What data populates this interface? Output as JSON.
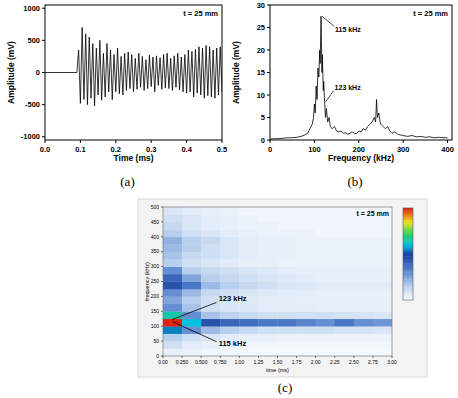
{
  "chart_data": [
    {
      "type": "line",
      "title": "(a)",
      "subtitle": "t = 25 mm",
      "x_label": "Time (ms)",
      "y_label": "Amplitude (mV)",
      "color": "#000000",
      "xlim": [
        0,
        0.5
      ],
      "ylim": [
        -1050,
        1050
      ],
      "xticks": [
        {
          "value": 0,
          "label": "0.0"
        },
        0.1,
        0.2,
        0.3,
        0.4,
        0.5
      ],
      "yticks": [
        -1000,
        -500,
        0,
        500,
        1000
      ],
      "x": [
        0,
        0.09,
        0.095,
        0.1,
        0.105,
        0.11,
        0.115,
        0.12,
        0.125,
        0.13,
        0.135,
        0.14,
        0.145,
        0.15,
        0.155,
        0.16,
        0.165,
        0.17,
        0.175,
        0.18,
        0.185,
        0.19,
        0.195,
        0.2,
        0.205,
        0.21,
        0.215,
        0.22,
        0.225,
        0.23,
        0.235,
        0.24,
        0.245,
        0.25,
        0.255,
        0.26,
        0.265,
        0.27,
        0.275,
        0.28,
        0.285,
        0.29,
        0.295,
        0.3,
        0.305,
        0.31,
        0.315,
        0.32,
        0.325,
        0.33,
        0.335,
        0.34,
        0.345,
        0.35,
        0.355,
        0.36,
        0.365,
        0.37,
        0.375,
        0.38,
        0.385,
        0.39,
        0.395,
        0.4,
        0.405,
        0.41,
        0.415,
        0.42,
        0.425,
        0.43,
        0.435,
        0.44,
        0.445,
        0.45,
        0.455,
        0.46,
        0.465,
        0.47,
        0.475,
        0.48,
        0.485,
        0.49,
        0.495,
        0.5
      ],
      "values": [
        0,
        0,
        350,
        -480,
        700,
        -420,
        600,
        -500,
        550,
        -400,
        450,
        -520,
        380,
        -350,
        500,
        -430,
        300,
        -380,
        450,
        -300,
        350,
        -420,
        280,
        -300,
        380,
        -330,
        250,
        -350,
        300,
        -280,
        320,
        -250,
        280,
        -300,
        220,
        -260,
        300,
        -230,
        250,
        -280,
        200,
        -250,
        270,
        -220,
        240,
        -300,
        260,
        -200,
        230,
        -260,
        280,
        -240,
        300,
        -250,
        220,
        -280,
        260,
        -230,
        300,
        -270,
        240,
        -300,
        280,
        -320,
        350,
        -300,
        330,
        -380,
        360,
        -320,
        400,
        -350,
        380,
        -400,
        420,
        -360,
        400,
        -380,
        350,
        -400,
        380,
        -350,
        400,
        -300
      ]
    },
    {
      "type": "line",
      "title": "(b)",
      "subtitle": "t = 25 mm",
      "x_label": "Frequency (kHz)",
      "y_label": "Amplitude (mV)",
      "color": "#000000",
      "xlim": [
        0,
        410
      ],
      "ylim": [
        0,
        30
      ],
      "xticks": [
        0,
        100,
        200,
        300,
        400
      ],
      "yticks": [
        0,
        5,
        10,
        15,
        20,
        25,
        30
      ],
      "x": [
        0,
        10,
        20,
        30,
        40,
        50,
        60,
        70,
        80,
        85,
        90,
        95,
        98,
        100,
        102,
        104,
        106,
        108,
        110,
        112,
        113,
        115,
        117,
        118,
        120,
        121,
        123,
        125,
        127,
        130,
        133,
        136,
        140,
        145,
        150,
        155,
        160,
        165,
        170,
        175,
        180,
        185,
        190,
        195,
        200,
        205,
        210,
        215,
        220,
        225,
        230,
        235,
        238,
        240,
        242,
        245,
        248,
        250,
        255,
        260,
        265,
        270,
        275,
        280,
        290,
        300,
        310,
        320,
        330,
        340,
        350,
        360,
        370,
        380,
        390,
        400
      ],
      "values": [
        0.2,
        0.3,
        0.3,
        0.4,
        0.5,
        0.5,
        0.6,
        0.8,
        1.2,
        1.5,
        2.5,
        3.5,
        5,
        8,
        6,
        12,
        9,
        16,
        14,
        20,
        17,
        27.5,
        15,
        19,
        11,
        13,
        8.5,
        5,
        7,
        4,
        5,
        3,
        2.5,
        3,
        2,
        1.8,
        2,
        1.5,
        1.6,
        1.3,
        1.5,
        1.8,
        1.5,
        1.4,
        2,
        1.8,
        2.5,
        2.2,
        3,
        3.5,
        4,
        5,
        4,
        9,
        5,
        6,
        4,
        3.5,
        3,
        2.5,
        3,
        2,
        1.5,
        1.8,
        1.2,
        1,
        0.8,
        1,
        0.7,
        0.8,
        0.6,
        0.7,
        0.5,
        0.6,
        0.5,
        0.5
      ],
      "annotations": [
        {
          "text": "115 kHz",
          "x": 115,
          "y": 27.5
        },
        {
          "text": "123 kHz",
          "x": 123,
          "y": 8.5
        }
      ]
    },
    {
      "type": "heatmap",
      "title": "(c)",
      "subtitle": "t = 25 mm",
      "x_label": "time (ms)",
      "y_label": "frequency (kHz)",
      "xlim": [
        0,
        3
      ],
      "ylim": [
        0,
        500
      ],
      "xticks": [
        {
          "value": 0,
          "label": "0.00"
        },
        {
          "value": 0.25,
          "label": "0.250"
        },
        {
          "value": 0.5,
          "label": "0.500"
        },
        {
          "value": 0.75,
          "label": "0.750"
        },
        {
          "value": 1,
          "label": "1.00"
        },
        1.25,
        {
          "value": 1.5,
          "label": "1.50"
        },
        1.75,
        {
          "value": 2,
          "label": "2.00"
        },
        2.25,
        {
          "value": 2.5,
          "label": "2.50"
        },
        2.75,
        {
          "value": 3,
          "label": "3.00"
        }
      ],
      "yticks": [
        0,
        50,
        100,
        150,
        200,
        250,
        300,
        350,
        400,
        450,
        500
      ],
      "x_bins": [
        0,
        0.25,
        0.5,
        0.75,
        1,
        1.25,
        1.5,
        1.75,
        2,
        2.25,
        2.5,
        2.75,
        3
      ],
      "y_bins": [
        0,
        25,
        50,
        75,
        100,
        125,
        150,
        175,
        200,
        225,
        250,
        275,
        300,
        325,
        350,
        375,
        400,
        425,
        450,
        475,
        500
      ],
      "color_range": [
        0,
        1
      ],
      "cells": [
        [
          0.05,
          0.04,
          0.03,
          0.03,
          0.02,
          0.02,
          0.02,
          0.02,
          0.02,
          0.02,
          0.02,
          0.02
        ],
        [
          0.1,
          0.06,
          0.05,
          0.04,
          0.03,
          0.03,
          0.03,
          0.03,
          0.03,
          0.03,
          0.03,
          0.03
        ],
        [
          0.15,
          0.1,
          0.08,
          0.06,
          0.05,
          0.05,
          0.04,
          0.04,
          0.04,
          0.04,
          0.04,
          0.04
        ],
        [
          0.55,
          0.3,
          0.2,
          0.15,
          0.12,
          0.1,
          0.1,
          0.1,
          0.1,
          0.09,
          0.09,
          0.08
        ],
        [
          1.0,
          0.6,
          0.45,
          0.4,
          0.38,
          0.35,
          0.35,
          0.32,
          0.3,
          0.35,
          0.3,
          0.28
        ],
        [
          0.65,
          0.3,
          0.18,
          0.14,
          0.12,
          0.1,
          0.1,
          0.1,
          0.1,
          0.09,
          0.09,
          0.08
        ],
        [
          0.3,
          0.18,
          0.1,
          0.08,
          0.07,
          0.06,
          0.06,
          0.06,
          0.05,
          0.05,
          0.05,
          0.05
        ],
        [
          0.25,
          0.15,
          0.1,
          0.08,
          0.07,
          0.06,
          0.06,
          0.05,
          0.05,
          0.05,
          0.05,
          0.05
        ],
        [
          0.3,
          0.2,
          0.12,
          0.1,
          0.08,
          0.07,
          0.06,
          0.06,
          0.05,
          0.05,
          0.05,
          0.05
        ],
        [
          0.45,
          0.35,
          0.2,
          0.15,
          0.12,
          0.1,
          0.08,
          0.07,
          0.06,
          0.06,
          0.06,
          0.06
        ],
        [
          0.4,
          0.25,
          0.15,
          0.12,
          0.1,
          0.08,
          0.07,
          0.06,
          0.05,
          0.05,
          0.05,
          0.05
        ],
        [
          0.3,
          0.15,
          0.12,
          0.1,
          0.08,
          0.07,
          0.06,
          0.05,
          0.05,
          0.05,
          0.05,
          0.05
        ],
        [
          0.15,
          0.1,
          0.08,
          0.06,
          0.05,
          0.05,
          0.04,
          0.04,
          0.04,
          0.04,
          0.04,
          0.04
        ],
        [
          0.18,
          0.12,
          0.1,
          0.08,
          0.06,
          0.05,
          0.05,
          0.04,
          0.04,
          0.04,
          0.04,
          0.04
        ],
        [
          0.2,
          0.15,
          0.1,
          0.08,
          0.06,
          0.05,
          0.05,
          0.04,
          0.04,
          0.04,
          0.04,
          0.04
        ],
        [
          0.22,
          0.15,
          0.12,
          0.08,
          0.06,
          0.05,
          0.05,
          0.04,
          0.04,
          0.04,
          0.04,
          0.04
        ],
        [
          0.15,
          0.1,
          0.08,
          0.06,
          0.05,
          0.04,
          0.04,
          0.04,
          0.03,
          0.03,
          0.03,
          0.03
        ],
        [
          0.12,
          0.08,
          0.06,
          0.05,
          0.04,
          0.04,
          0.03,
          0.03,
          0.03,
          0.03,
          0.03,
          0.03
        ],
        [
          0.1,
          0.08,
          0.06,
          0.05,
          0.04,
          0.03,
          0.03,
          0.03,
          0.03,
          0.03,
          0.03,
          0.03
        ],
        [
          0.08,
          0.06,
          0.05,
          0.04,
          0.03,
          0.03,
          0.03,
          0.03,
          0.03,
          0.03,
          0.03,
          0.03
        ]
      ],
      "annotations": [
        {
          "text": "123 kHz",
          "x": 0.1,
          "y": 123
        },
        {
          "text": "115 kHz",
          "x": 0.1,
          "y": 115
        }
      ]
    }
  ]
}
